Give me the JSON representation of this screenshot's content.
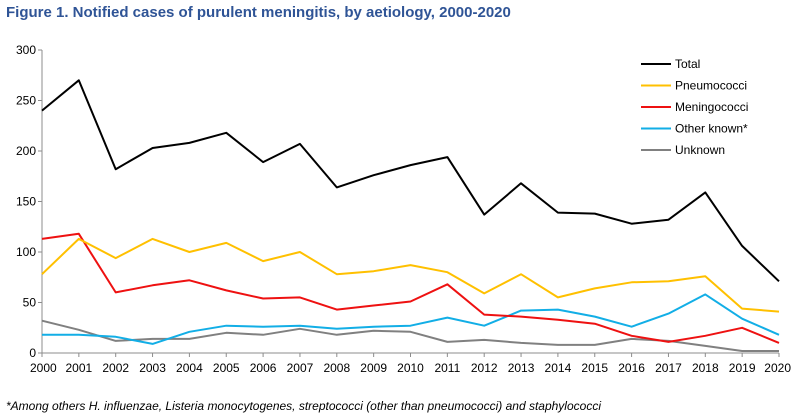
{
  "figure": {
    "title": "Figure 1. Notified cases of purulent meningitis, by aetiology, 2000-2020",
    "footnote": "*Among others H. influenzae, Listeria monocytogenes, streptococci (other than pneumococci) and staphylococci"
  },
  "chart_data": {
    "type": "line",
    "title": "Figure 1. Notified cases of purulent meningitis, by aetiology, 2000-2020",
    "x": [
      "2000",
      "2001",
      "2002",
      "2003",
      "2004",
      "2005",
      "2006",
      "2007",
      "2008",
      "2009",
      "2010",
      "2011",
      "2012",
      "2013",
      "2014",
      "2015",
      "2016",
      "2017",
      "2018",
      "2019",
      "2020"
    ],
    "ylim": [
      0,
      300
    ],
    "yticks": [
      0,
      50,
      100,
      150,
      200,
      250,
      300
    ],
    "grid": false,
    "legend_position": "top-right",
    "series": [
      {
        "name": "Total",
        "color": "#000000",
        "values": [
          240,
          270,
          182,
          203,
          208,
          218,
          189,
          207,
          164,
          176,
          186,
          194,
          137,
          168,
          139,
          138,
          128,
          132,
          159,
          106,
          71
        ]
      },
      {
        "name": "Pneumococci",
        "color": "#ffc000",
        "values": [
          78,
          113,
          94,
          113,
          100,
          109,
          91,
          100,
          78,
          81,
          87,
          80,
          59,
          78,
          55,
          64,
          70,
          71,
          76,
          44,
          41
        ]
      },
      {
        "name": "Meningococci",
        "color": "#ee1111",
        "values": [
          113,
          118,
          60,
          67,
          72,
          62,
          54,
          55,
          43,
          47,
          51,
          68,
          38,
          36,
          33,
          29,
          17,
          11,
          17,
          25,
          10
        ]
      },
      {
        "name": "Other known*",
        "color": "#12aee6",
        "values": [
          18,
          18,
          16,
          9,
          21,
          27,
          26,
          27,
          24,
          26,
          27,
          35,
          27,
          42,
          43,
          36,
          26,
          39,
          58,
          34,
          18
        ]
      },
      {
        "name": "Unknown",
        "color": "#808080",
        "values": [
          32,
          23,
          12,
          14,
          14,
          20,
          18,
          24,
          18,
          22,
          21,
          11,
          13,
          10,
          8,
          8,
          14,
          12,
          7,
          2,
          2
        ]
      }
    ]
  }
}
